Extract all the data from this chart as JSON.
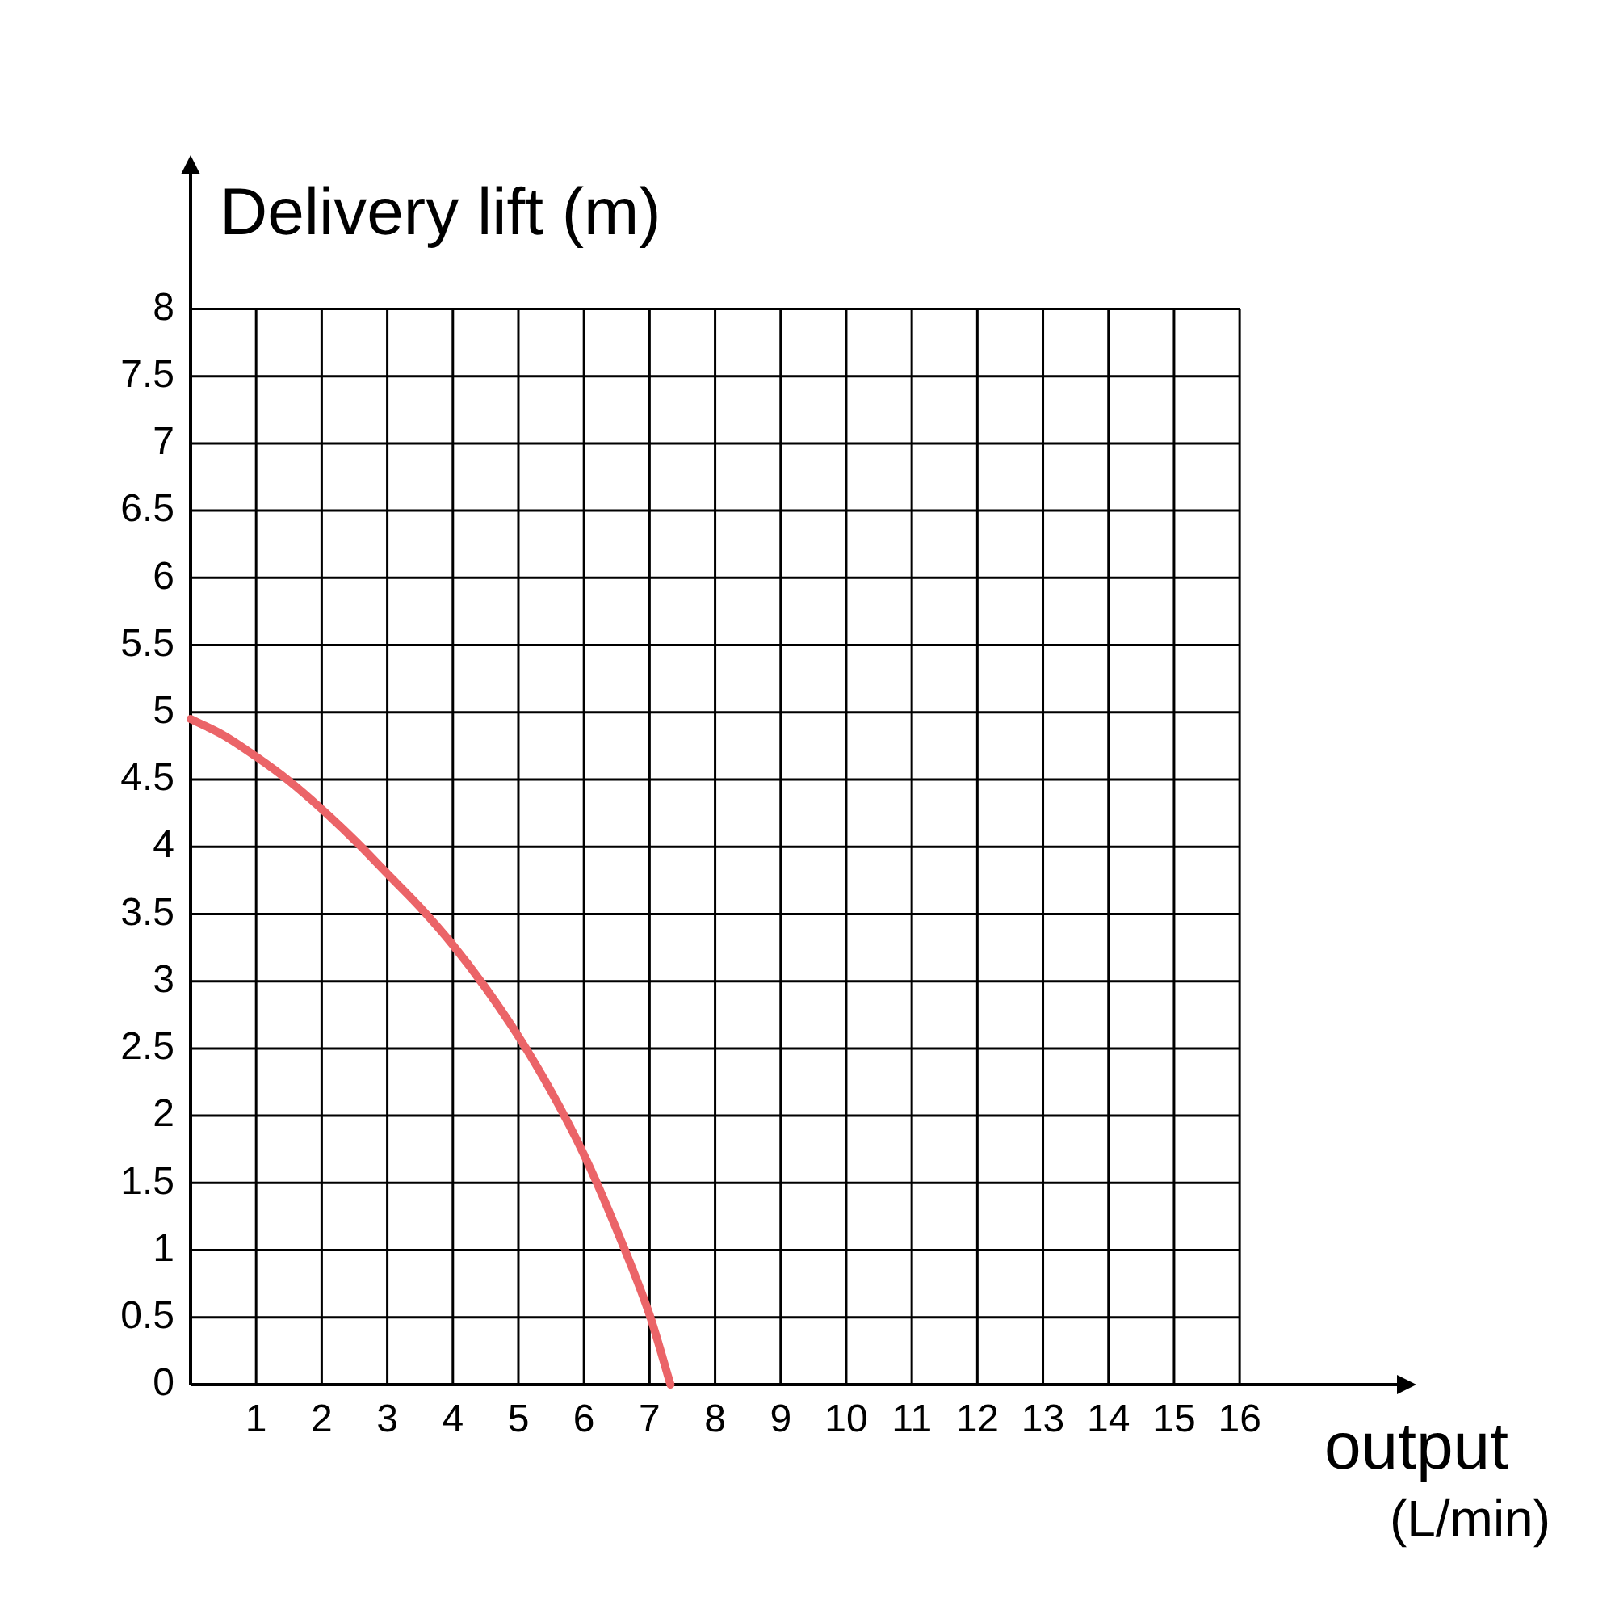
{
  "chart_data": {
    "type": "line",
    "xlabel": "output (L/min)",
    "ylabel": "Delivery lift (m)",
    "x": [
      0,
      0.5,
      1,
      1.5,
      2,
      2.5,
      3,
      3.5,
      4,
      4.5,
      5,
      5.5,
      6,
      6.5,
      7,
      7.32
    ],
    "values": [
      4.95,
      4.83,
      4.67,
      4.49,
      4.28,
      4.05,
      3.8,
      3.55,
      3.27,
      2.95,
      2.59,
      2.18,
      1.71,
      1.15,
      0.52,
      0
    ],
    "color": "#eb6468",
    "marker": "none",
    "xlim": [
      0,
      18.4
    ],
    "xticks": [
      1,
      2,
      3,
      4,
      5,
      6,
      7,
      8,
      9,
      10,
      11,
      12,
      13,
      14,
      15,
      16
    ],
    "ylim": [
      0,
      9
    ],
    "yticks": [
      0,
      0.5,
      1,
      1.5,
      2,
      2.5,
      3,
      3.5,
      4,
      4.5,
      5,
      5.5,
      6,
      6.5,
      7,
      7.5,
      8
    ],
    "grid": true
  }
}
